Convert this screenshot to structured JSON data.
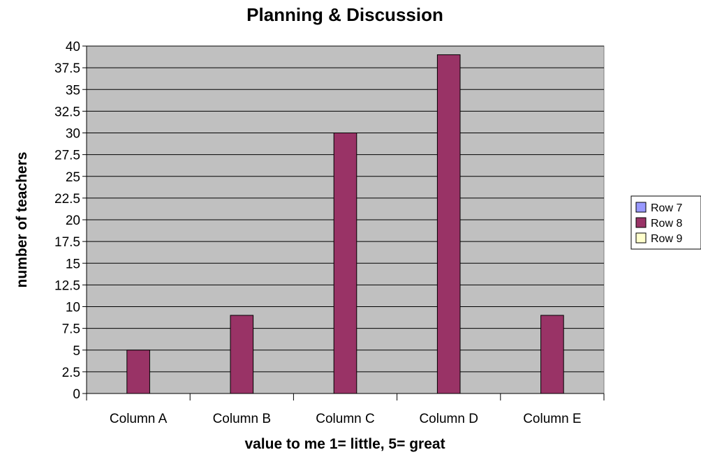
{
  "chart_data": {
    "type": "bar",
    "title": "Planning & Discussion",
    "xlabel": "value to me 1= little, 5= great",
    "ylabel": "number of teachers",
    "categories": [
      "Column A",
      "Column B",
      "Column C",
      "Column D",
      "Column E"
    ],
    "series": [
      {
        "name": "Row 7",
        "color": "#9999ff",
        "values": [
          0,
          0,
          0,
          0,
          0
        ]
      },
      {
        "name": "Row 8",
        "color": "#993366",
        "values": [
          5,
          9,
          30,
          39,
          9
        ]
      },
      {
        "name": "Row 9",
        "color": "#ffffcc",
        "values": [
          0,
          0,
          0,
          0,
          0
        ]
      }
    ],
    "ylim": [
      0,
      40
    ],
    "yticks": [
      "0",
      "2.5",
      "5",
      "7.5",
      "10",
      "12.5",
      "15",
      "17.5",
      "20",
      "22.5",
      "25",
      "27.5",
      "30",
      "32.5",
      "35",
      "37.5",
      "40"
    ],
    "grid": true,
    "legend_position": "right",
    "plot_background": "#c0c0c0"
  }
}
